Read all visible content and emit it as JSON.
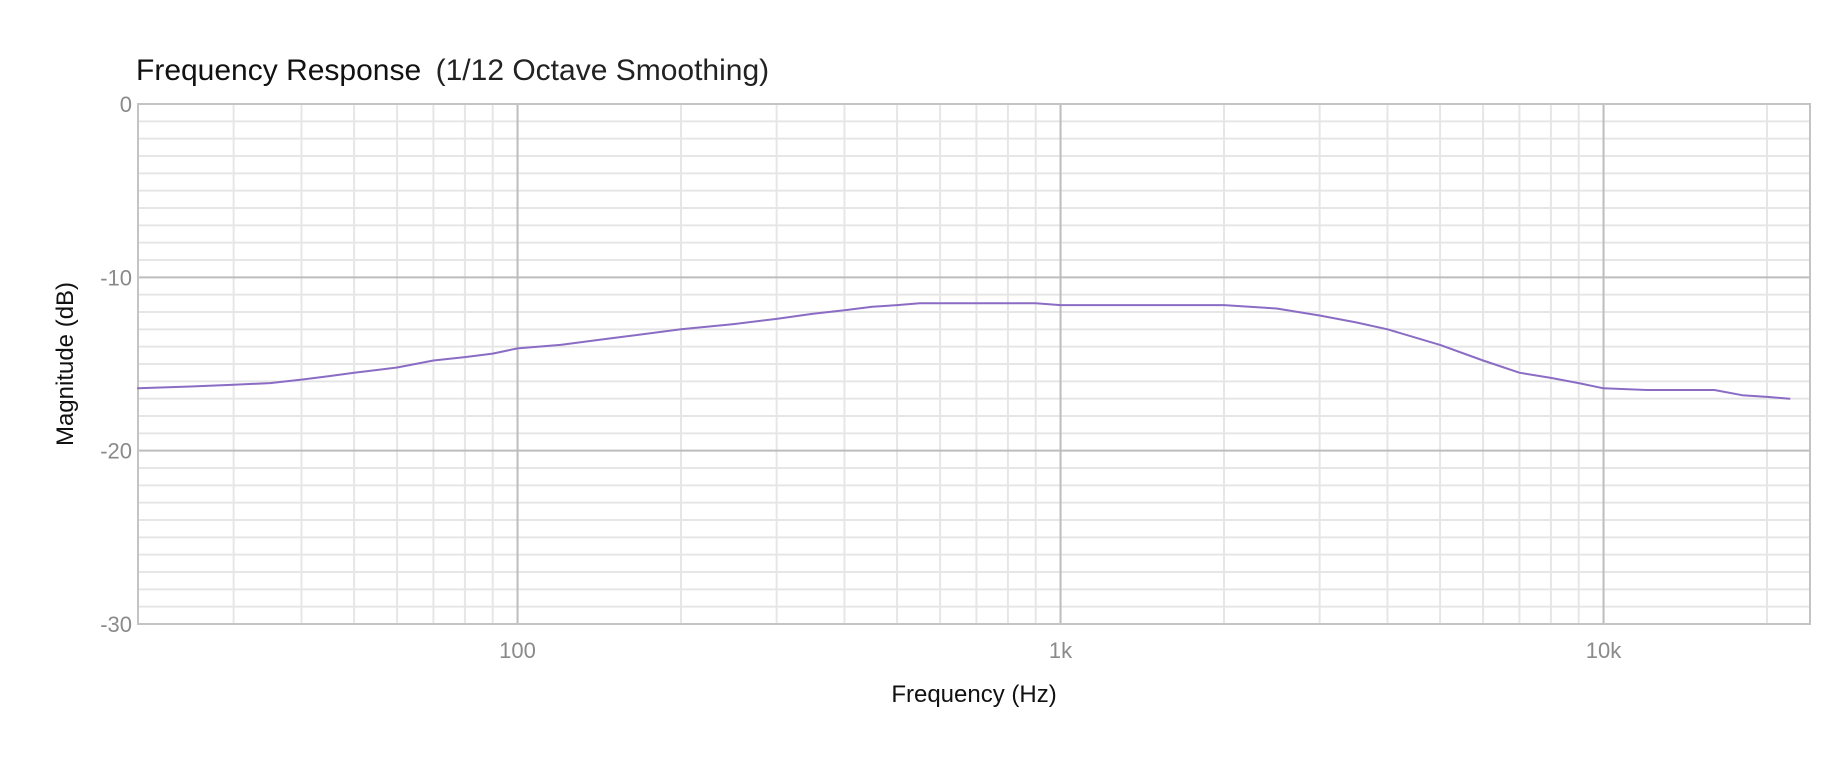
{
  "chart_data": {
    "type": "line",
    "title": "Frequency Response",
    "subtitle": "(1/12 Octave Smoothing)",
    "xlabel": "Frequency (Hz)",
    "ylabel": "Magnitude (dB)",
    "x_scale": "log",
    "xlim": [
      20,
      24000
    ],
    "ylim": [
      -30,
      0
    ],
    "x_ticks": [
      {
        "value": 100,
        "label": "100"
      },
      {
        "value": 1000,
        "label": "1k"
      },
      {
        "value": 10000,
        "label": "10k"
      }
    ],
    "y_ticks": [
      {
        "value": 0,
        "label": "0"
      },
      {
        "value": -10,
        "label": "-10"
      },
      {
        "value": -20,
        "label": "-20"
      },
      {
        "value": -30,
        "label": "-30"
      }
    ],
    "grid": true,
    "line_color": "#8b6cc4",
    "series": [
      {
        "x": [
          20,
          25,
          30,
          35,
          40,
          45,
          50,
          60,
          70,
          80,
          90,
          100,
          120,
          150,
          200,
          250,
          300,
          350,
          400,
          450,
          500,
          550,
          600,
          700,
          800,
          900,
          1000,
          1200,
          1500,
          1700,
          2000,
          2500,
          3000,
          3500,
          4000,
          5000,
          6000,
          7000,
          8000,
          9000,
          10000,
          12000,
          14000,
          16000,
          18000,
          20000,
          22000
        ],
        "y": [
          -16.4,
          -16.3,
          -16.2,
          -16.1,
          -15.9,
          -15.7,
          -15.5,
          -15.2,
          -14.8,
          -14.6,
          -14.4,
          -14.1,
          -13.9,
          -13.5,
          -13.0,
          -12.7,
          -12.4,
          -12.1,
          -11.9,
          -11.7,
          -11.6,
          -11.5,
          -11.5,
          -11.5,
          -11.5,
          -11.5,
          -11.6,
          -11.6,
          -11.6,
          -11.6,
          -11.6,
          -11.8,
          -12.2,
          -12.6,
          -13.0,
          -13.9,
          -14.8,
          -15.5,
          -15.8,
          -16.1,
          -16.4,
          -16.5,
          -16.5,
          -16.5,
          -16.8,
          -16.9,
          -17.0
        ]
      }
    ]
  }
}
